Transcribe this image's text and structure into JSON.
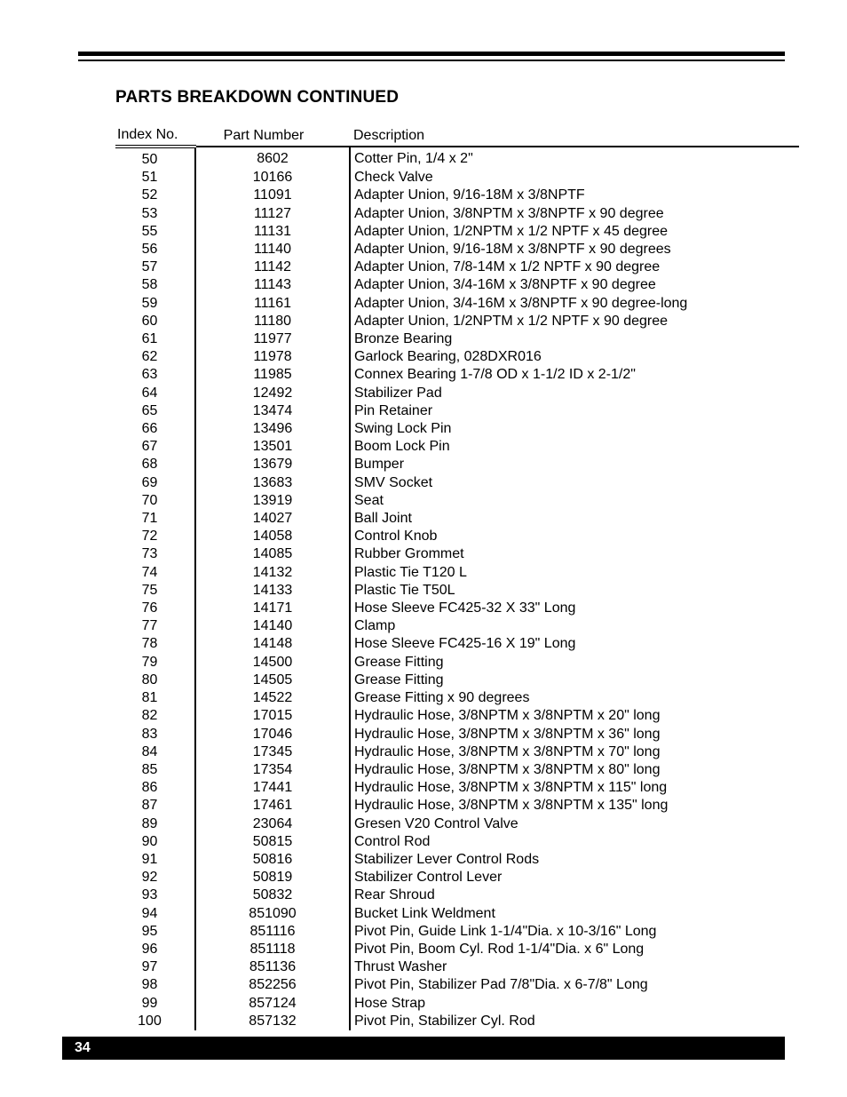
{
  "page": {
    "heading": "PARTS BREAKDOWN CONTINUED",
    "page_number": "34"
  },
  "table": {
    "columns": [
      "Index No.",
      "Part Number",
      "Description"
    ],
    "rows": [
      {
        "idx": "50",
        "part": "8602",
        "desc": "Cotter Pin, 1/4 x 2\""
      },
      {
        "idx": "51",
        "part": "10166",
        "desc": "Check Valve"
      },
      {
        "idx": "52",
        "part": "11091",
        "desc": "Adapter Union, 9/16-18M x 3/8NPTF"
      },
      {
        "idx": "53",
        "part": "11127",
        "desc": "Adapter Union, 3/8NPTM x 3/8NPTF x 90 degree"
      },
      {
        "idx": "55",
        "part": "11131",
        "desc": "Adapter Union, 1/2NPTM x 1/2 NPTF x 45 degree"
      },
      {
        "idx": "56",
        "part": "11140",
        "desc": "Adapter Union, 9/16-18M x 3/8NPTF x 90 degrees"
      },
      {
        "idx": "57",
        "part": "11142",
        "desc": "Adapter Union, 7/8-14M x 1/2 NPTF x 90 degree"
      },
      {
        "idx": "58",
        "part": "11143",
        "desc": "Adapter Union, 3/4-16M x 3/8NPTF x 90 degree"
      },
      {
        "idx": "59",
        "part": "11161",
        "desc": "Adapter Union, 3/4-16M x 3/8NPTF x 90 degree-long"
      },
      {
        "idx": "60",
        "part": "11180",
        "desc": "Adapter Union, 1/2NPTM x 1/2 NPTF x 90 degree"
      },
      {
        "idx": "61",
        "part": "11977",
        "desc": "Bronze Bearing"
      },
      {
        "idx": "62",
        "part": "11978",
        "desc": "Garlock Bearing,  028DXR016"
      },
      {
        "idx": "63",
        "part": "11985",
        "desc": "Connex Bearing 1-7/8 OD x 1-1/2 ID x 2-1/2\""
      },
      {
        "idx": "64",
        "part": "12492",
        "desc": "Stabilizer Pad"
      },
      {
        "idx": "65",
        "part": "13474",
        "desc": "Pin Retainer"
      },
      {
        "idx": "66",
        "part": "13496",
        "desc": "Swing Lock Pin"
      },
      {
        "idx": "67",
        "part": "13501",
        "desc": "Boom Lock Pin"
      },
      {
        "idx": "68",
        "part": "13679",
        "desc": "Bumper"
      },
      {
        "idx": "69",
        "part": "13683",
        "desc": "SMV Socket"
      },
      {
        "idx": "70",
        "part": "13919",
        "desc": "Seat"
      },
      {
        "idx": "71",
        "part": "14027",
        "desc": "Ball Joint"
      },
      {
        "idx": "72",
        "part": "14058",
        "desc": "Control Knob"
      },
      {
        "idx": "73",
        "part": "14085",
        "desc": "Rubber Grommet"
      },
      {
        "idx": "74",
        "part": "14132",
        "desc": "Plastic Tie T120 L"
      },
      {
        "idx": "75",
        "part": "14133",
        "desc": "Plastic Tie T50L"
      },
      {
        "idx": "76",
        "part": "14171",
        "desc": "Hose Sleeve FC425-32 X 33\" Long"
      },
      {
        "idx": "77",
        "part": "14140",
        "desc": "Clamp"
      },
      {
        "idx": "78",
        "part": "14148",
        "desc": "Hose Sleeve FC425-16 X 19\" Long"
      },
      {
        "idx": "79",
        "part": "14500",
        "desc": "Grease Fitting"
      },
      {
        "idx": "80",
        "part": "14505",
        "desc": "Grease Fitting"
      },
      {
        "idx": "81",
        "part": "14522",
        "desc": "Grease Fitting x 90 degrees"
      },
      {
        "idx": "82",
        "part": "17015",
        "desc": "Hydraulic Hose, 3/8NPTM x 3/8NPTM x 20\" long"
      },
      {
        "idx": "83",
        "part": "17046",
        "desc": "Hydraulic Hose, 3/8NPTM x 3/8NPTM x 36\" long"
      },
      {
        "idx": "84",
        "part": "17345",
        "desc": "Hydraulic Hose, 3/8NPTM x 3/8NPTM x 70\" long"
      },
      {
        "idx": "85",
        "part": "17354",
        "desc": "Hydraulic Hose, 3/8NPTM x 3/8NPTM x 80\" long"
      },
      {
        "idx": "86",
        "part": "17441",
        "desc": "Hydraulic Hose, 3/8NPTM x 3/8NPTM x 115\" long"
      },
      {
        "idx": "87",
        "part": "17461",
        "desc": "Hydraulic Hose, 3/8NPTM x 3/8NPTM x 135\" long"
      },
      {
        "idx": "89",
        "part": "23064",
        "desc": "Gresen V20 Control Valve"
      },
      {
        "idx": "90",
        "part": "50815",
        "desc": "Control Rod"
      },
      {
        "idx": "91",
        "part": "50816",
        "desc": "Stabilizer Lever Control Rods"
      },
      {
        "idx": "92",
        "part": "50819",
        "desc": "Stabilizer Control Lever"
      },
      {
        "idx": "93",
        "part": "50832",
        "desc": "Rear Shroud"
      },
      {
        "idx": "94",
        "part": "851090",
        "desc": "Bucket Link Weldment"
      },
      {
        "idx": "95",
        "part": "851116",
        "desc": "Pivot Pin, Guide Link   1-1/4\"Dia. x 10-3/16\" Long"
      },
      {
        "idx": "96",
        "part": "851118",
        "desc": "Pivot Pin, Boom Cyl. Rod 1-1/4\"Dia. x 6\" Long"
      },
      {
        "idx": "97",
        "part": "851136",
        "desc": "Thrust Washer"
      },
      {
        "idx": "98",
        "part": "852256",
        "desc": "Pivot Pin, Stabilizer Pad  7/8\"Dia. x 6-7/8\" Long"
      },
      {
        "idx": "99",
        "part": "857124",
        "desc": "Hose Strap"
      },
      {
        "idx": "100",
        "part": "857132",
        "desc": "Pivot Pin, Stabilizer Cyl. Rod"
      }
    ]
  }
}
